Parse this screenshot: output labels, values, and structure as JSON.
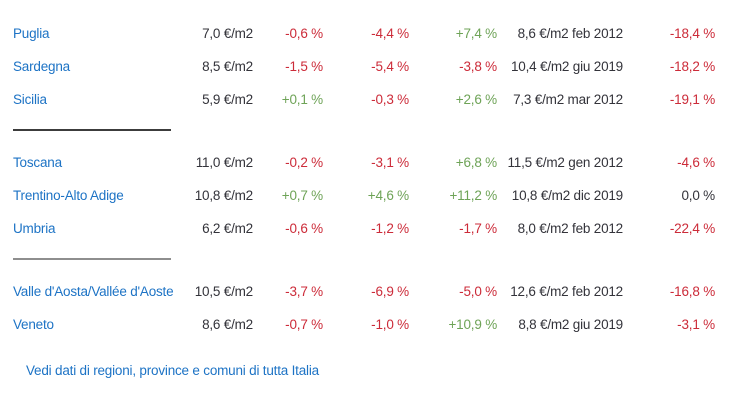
{
  "colors": {
    "link": "#1d73c5",
    "negative": "#cc2b39",
    "positive": "#6ea357",
    "neutral": "#33333a",
    "divider_dark": "#3c3c3c",
    "divider_light": "#8e8e8e"
  },
  "table": {
    "unit": "€/m2",
    "groups": [
      {
        "rows": [
          {
            "region": "Puglia",
            "price": "7,0 €/m2",
            "chg_1": "-0,6 %",
            "chg_2": "-4,4 %",
            "chg_3": "+7,4 %",
            "max_price": "8,6 €/m2 feb 2012",
            "chg_from_max": "-18,4 %"
          },
          {
            "region": "Sardegna",
            "price": "8,5 €/m2",
            "chg_1": "-1,5 %",
            "chg_2": "-5,4 %",
            "chg_3": "-3,8 %",
            "max_price": "10,4 €/m2 giu 2019",
            "chg_from_max": "-18,2 %"
          },
          {
            "region": "Sicilia",
            "price": "5,9 €/m2",
            "chg_1": "+0,1 %",
            "chg_2": "-0,3 %",
            "chg_3": "+2,6 %",
            "max_price": "7,3 €/m2 mar 2012",
            "chg_from_max": "-19,1 %"
          }
        ]
      },
      {
        "rows": [
          {
            "region": "Toscana",
            "price": "11,0 €/m2",
            "chg_1": "-0,2 %",
            "chg_2": "-3,1 %",
            "chg_3": "+6,8 %",
            "max_price": "11,5 €/m2 gen 2012",
            "chg_from_max": "-4,6 %"
          },
          {
            "region": "Trentino-Alto Adige",
            "price": "10,8 €/m2",
            "chg_1": "+0,7 %",
            "chg_2": "+4,6 %",
            "chg_3": "+11,2 %",
            "max_price": "10,8 €/m2 dic 2019",
            "chg_from_max": "0,0 %"
          },
          {
            "region": "Umbria",
            "price": "6,2 €/m2",
            "chg_1": "-0,6 %",
            "chg_2": "-1,2 %",
            "chg_3": "-1,7 %",
            "max_price": "8,0 €/m2 feb 2012",
            "chg_from_max": "-22,4 %"
          }
        ]
      },
      {
        "rows": [
          {
            "region": "Valle d'Aosta/Vallée d'Aoste",
            "price": "10,5 €/m2",
            "chg_1": "-3,7 %",
            "chg_2": "-6,9 %",
            "chg_3": "-5,0 %",
            "max_price": "12,6 €/m2 feb 2012",
            "chg_from_max": "-16,8 %"
          },
          {
            "region": "Veneto",
            "price": "8,6 €/m2",
            "chg_1": "-0,7 %",
            "chg_2": "-1,0 %",
            "chg_3": "+10,9 %",
            "max_price": "8,8 €/m2 giu 2019",
            "chg_from_max": "-3,1 %"
          }
        ]
      }
    ]
  },
  "footer": {
    "link_label": "Vedi dati di regioni, province e comuni di tutta Italia"
  }
}
